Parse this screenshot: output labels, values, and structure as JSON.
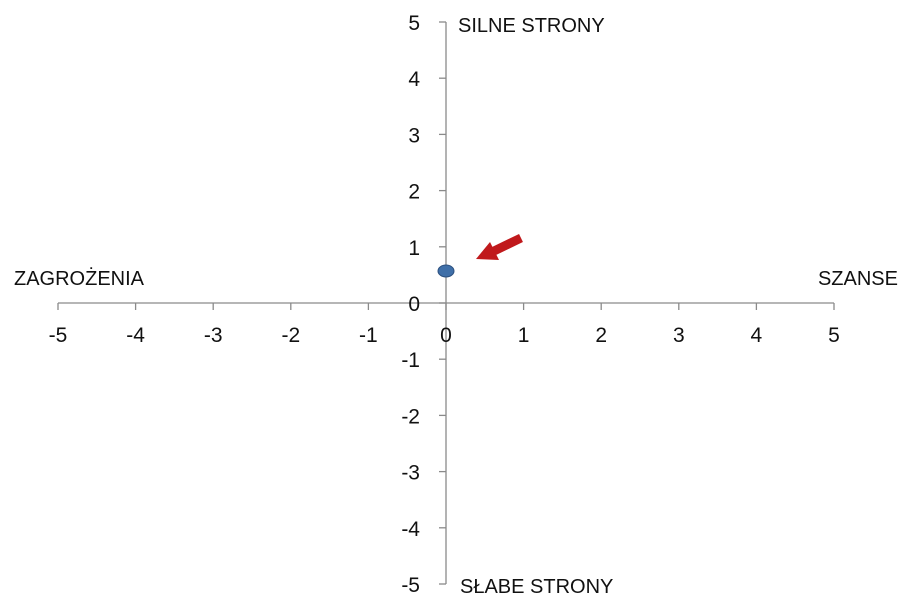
{
  "chart_data": {
    "type": "scatter",
    "title": "",
    "xlabel": "",
    "ylabel": "",
    "xlim": [
      -5,
      5
    ],
    "ylim": [
      -5,
      5
    ],
    "x_ticks": [
      -5,
      -4,
      -3,
      -2,
      -1,
      0,
      1,
      2,
      3,
      4,
      5
    ],
    "y_ticks": [
      -5,
      -4,
      -3,
      -2,
      -1,
      0,
      1,
      2,
      3,
      4,
      5
    ],
    "grid": false,
    "series": [
      {
        "x": [
          0
        ],
        "y": [
          0.57
        ],
        "color": "#3f6fa8"
      }
    ],
    "annotations": {
      "top": "SILNE STRONY",
      "bottom": "SŁABE STRONY",
      "left": "ZAGROŻENIA",
      "right": "SZANSE"
    },
    "arrow_color": "#c0191c"
  }
}
